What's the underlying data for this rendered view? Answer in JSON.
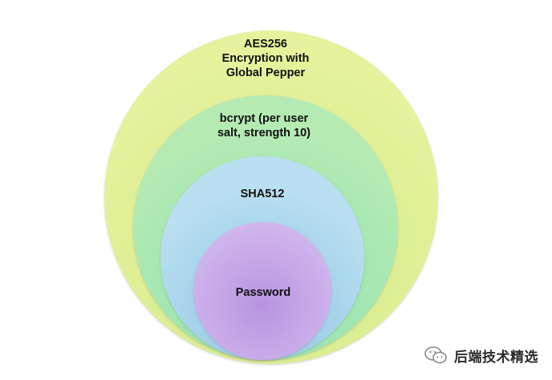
{
  "diagram": {
    "layers": [
      {
        "id": "aes",
        "lines": [
          "AES256",
          "Encryption with",
          "Global Pepper"
        ],
        "color": "#d8ec8e"
      },
      {
        "id": "bcrypt",
        "lines": [
          "bcrypt (per user",
          "salt, strength 10)"
        ],
        "color": "#9fe6b6"
      },
      {
        "id": "sha",
        "lines": [
          "SHA512"
        ],
        "color": "#a8d6ea"
      },
      {
        "id": "password",
        "lines": [
          "Password"
        ],
        "color": "#c4a5e6"
      }
    ]
  },
  "watermark": {
    "text": "后端技术精选",
    "icon": "wechat-bubbles-icon"
  }
}
